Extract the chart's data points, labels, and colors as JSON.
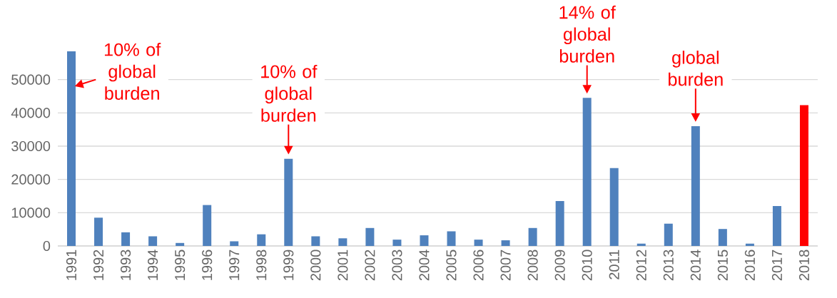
{
  "chart_data": {
    "type": "bar",
    "categories": [
      "1991",
      "1992",
      "1993",
      "1994",
      "1995",
      "1996",
      "1997",
      "1998",
      "1999",
      "2000",
      "2001",
      "2002",
      "2003",
      "2004",
      "2005",
      "2006",
      "2007",
      "2008",
      "2009",
      "2010",
      "2011",
      "2012",
      "2013",
      "2014",
      "2015",
      "2016",
      "2017",
      "2018"
    ],
    "values": [
      58500,
      8500,
      4100,
      2900,
      900,
      12300,
      1400,
      3500,
      26200,
      2900,
      2300,
      5400,
      1900,
      3200,
      4400,
      1900,
      1700,
      5400,
      13500,
      44500,
      23400,
      700,
      6700,
      36000,
      5100,
      700,
      12000,
      42300
    ],
    "colors": [
      "#4f81bd",
      "#4f81bd",
      "#4f81bd",
      "#4f81bd",
      "#4f81bd",
      "#4f81bd",
      "#4f81bd",
      "#4f81bd",
      "#4f81bd",
      "#4f81bd",
      "#4f81bd",
      "#4f81bd",
      "#4f81bd",
      "#4f81bd",
      "#4f81bd",
      "#4f81bd",
      "#4f81bd",
      "#4f81bd",
      "#4f81bd",
      "#4f81bd",
      "#4f81bd",
      "#4f81bd",
      "#4f81bd",
      "#4f81bd",
      "#4f81bd",
      "#4f81bd",
      "#4f81bd",
      "#ff0000"
    ],
    "ylim": [
      0,
      58500
    ],
    "yticks": [
      0,
      10000,
      20000,
      30000,
      40000,
      50000
    ],
    "grid": "y",
    "annotations": [
      {
        "text": "10% of global burden",
        "x": "1991",
        "y": 58500
      },
      {
        "text": "10% of global burden",
        "x": "1999",
        "y": 26200
      },
      {
        "text": "14% of global burden",
        "x": "2010",
        "y": 44500
      },
      {
        "text": "global burden",
        "x": "2014",
        "y": 36000
      }
    ]
  }
}
